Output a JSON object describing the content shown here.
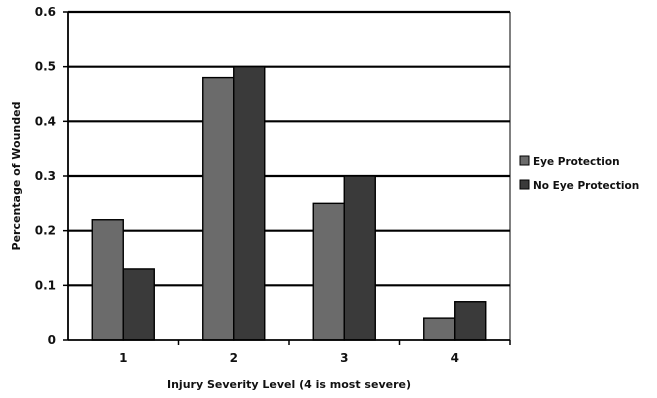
{
  "chart_data": {
    "type": "bar",
    "categories": [
      "1",
      "2",
      "3",
      "4"
    ],
    "series": [
      {
        "name": "Eye Protection",
        "values": [
          0.22,
          0.48,
          0.25,
          0.04
        ],
        "color": "#6b6b6b"
      },
      {
        "name": "No Eye Protection",
        "values": [
          0.13,
          0.5,
          0.3,
          0.07
        ],
        "color": "#3a3a3a"
      }
    ],
    "yticks": [
      "0",
      "0.1",
      "0.2",
      "0.3",
      "0.4",
      "0.5",
      "0.6"
    ],
    "ylim": [
      0,
      0.6
    ],
    "ylabel": "Percentage of Wounded",
    "xlabel": "Injury Severity Level (4 is most severe)",
    "grid": true,
    "legend_position": "right"
  }
}
